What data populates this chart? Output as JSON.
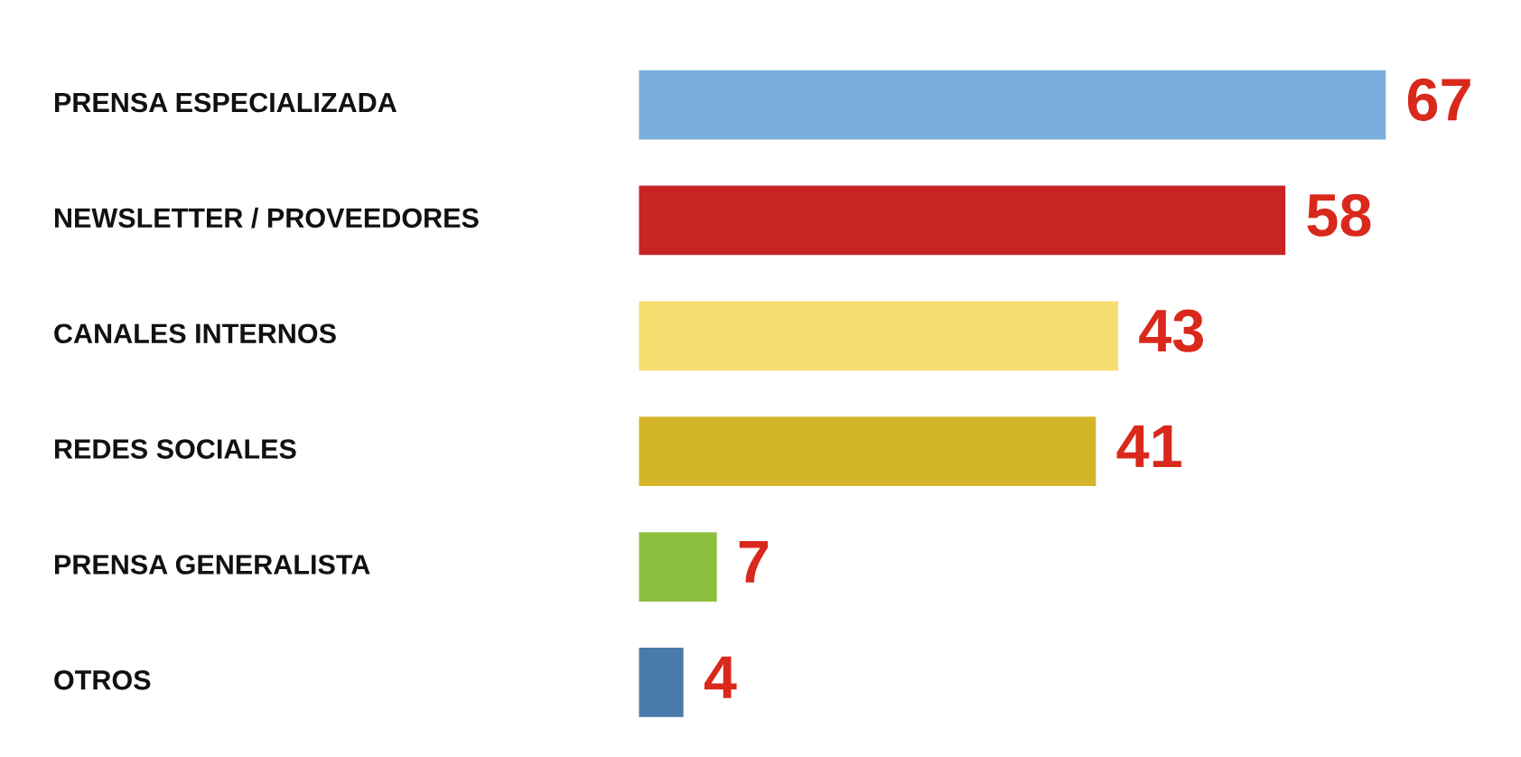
{
  "chart_data": {
    "type": "bar",
    "orientation": "horizontal",
    "categories": [
      "PRENSA ESPECIALIZADA",
      "NEWSLETTER / PROVEEDORES",
      "CANALES INTERNOS",
      "REDES SOCIALES",
      "PRENSA GENERALISTA",
      "OTROS"
    ],
    "values": [
      67,
      58,
      43,
      41,
      7,
      4
    ],
    "colors": [
      "#7aaedc",
      "#c82424",
      "#f7dc6f",
      "#d4b52a",
      "#8dbf3f",
      "#4a7aaa"
    ],
    "data_labels": true
  }
}
